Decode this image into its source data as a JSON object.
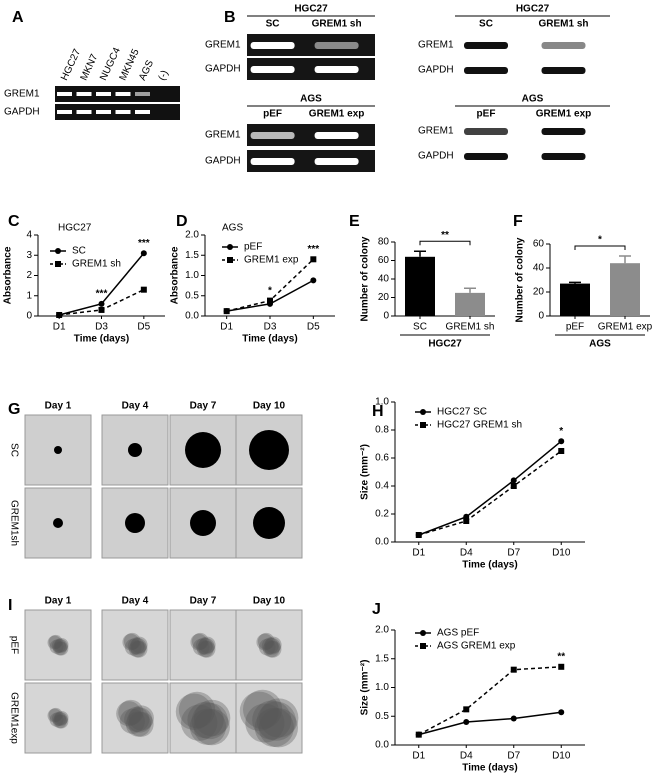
{
  "panels": [
    "A",
    "B",
    "C",
    "D",
    "E",
    "F",
    "G",
    "H",
    "I",
    "J"
  ],
  "gels": {
    "A": {
      "lanes": [
        "HGC27",
        "MKN7",
        "NUGC4",
        "MKN45",
        "AGS",
        "(-)"
      ],
      "rows": [
        "GREM1",
        "GAPDH"
      ]
    },
    "B": [
      {
        "header": "HGC27",
        "columns": [
          "SC",
          "GREM1 sh"
        ],
        "rows": [
          "GREM1",
          "GAPDH"
        ]
      },
      {
        "header": "HGC27",
        "columns": [
          "SC",
          "GREM1 sh"
        ],
        "rows": [
          "GREM1",
          "GAPDH"
        ]
      },
      {
        "header": "AGS",
        "columns": [
          "pEF",
          "GREM1 exp"
        ],
        "rows": [
          "GREM1",
          "GAPDH"
        ]
      },
      {
        "header": "AGS",
        "columns": [
          "pEF",
          "GREM1 exp"
        ],
        "rows": [
          "GREM1",
          "GAPDH"
        ]
      }
    ]
  },
  "spheroids": [
    {
      "days": [
        "Day 1",
        "Day 4",
        "Day  7",
        "Day 10"
      ],
      "rows": [
        "SC",
        "GREM1sh"
      ]
    },
    {
      "days": [
        "Day 1",
        "Day 4",
        "Day  7",
        "Day 10"
      ],
      "rows": [
        "pEF",
        "GREM1exp"
      ]
    }
  ],
  "chart_data": [
    {
      "type": "line",
      "title": "HGC27",
      "categories": [
        "D1",
        "D3",
        "D5"
      ],
      "series": [
        {
          "name": "SC",
          "color": "#000000",
          "marker": "circle",
          "dash": false,
          "values": [
            0.05,
            0.6,
            3.1
          ]
        },
        {
          "name": "GREM1 sh",
          "color": "#000000",
          "marker": "square",
          "dash": true,
          "values": [
            0.05,
            0.3,
            1.3
          ]
        }
      ],
      "ylim": [
        0,
        4
      ],
      "yticks": [
        0,
        1,
        2,
        3,
        4
      ],
      "y_label": "Absorbance",
      "x_label": "Time (days)",
      "annotations": [
        {
          "text": "***",
          "category": "D3"
        },
        {
          "text": "***",
          "category": "D5"
        }
      ]
    },
    {
      "type": "line",
      "title": "AGS",
      "categories": [
        "D1",
        "D3",
        "D5"
      ],
      "series": [
        {
          "name": "pEF",
          "color": "#000000",
          "marker": "circle",
          "dash": false,
          "values": [
            0.12,
            0.3,
            0.88
          ]
        },
        {
          "name": "GREM1 exp",
          "color": "#000000",
          "marker": "square",
          "dash": true,
          "values": [
            0.12,
            0.38,
            1.4
          ]
        }
      ],
      "ylim": [
        0,
        2
      ],
      "yticks": [
        {
          "value": 0,
          "label": "0.0"
        },
        {
          "value": 0.5,
          "label": "0.5"
        },
        {
          "value": 1,
          "label": "1.0"
        },
        {
          "value": 1.5,
          "label": "1.5"
        },
        {
          "value": 2,
          "label": "2.0"
        }
      ],
      "y_label": "Absorbance",
      "x_label": "Time (days)",
      "annotations": [
        {
          "text": "*",
          "category": "D3"
        },
        {
          "text": "***",
          "category": "D5"
        }
      ]
    },
    {
      "type": "bar",
      "categories": [
        "SC",
        "GREM1 sh"
      ],
      "values": [
        64,
        25
      ],
      "errors": [
        6,
        5
      ],
      "colors": [
        "#000000",
        "#8c8c8c"
      ],
      "ylim": [
        0,
        80
      ],
      "yticks": [
        0,
        20,
        40,
        60,
        80
      ],
      "y_label": "Number of colony",
      "group": "HGC27",
      "significance": "**"
    },
    {
      "type": "bar",
      "categories": [
        "pEF",
        "GREM1 exp"
      ],
      "values": [
        27,
        44
      ],
      "errors": [
        1,
        6
      ],
      "colors": [
        "#000000",
        "#8c8c8c"
      ],
      "ylim": [
        0,
        60
      ],
      "yticks": [
        0,
        20,
        40,
        60
      ],
      "y_label": "Number of colony",
      "group": "AGS",
      "significance": "*"
    },
    {
      "type": "line",
      "categories": [
        "D1",
        "D4",
        "D7",
        "D10"
      ],
      "series": [
        {
          "name": "HGC27 SC",
          "color": "#000000",
          "marker": "circle",
          "dash": false,
          "values": [
            0.05,
            0.18,
            0.44,
            0.72
          ]
        },
        {
          "name": "HGC27 GREM1 sh",
          "color": "#000000",
          "marker": "square",
          "dash": true,
          "values": [
            0.05,
            0.15,
            0.4,
            0.65
          ]
        }
      ],
      "ylim": [
        0,
        1
      ],
      "yticks": [
        {
          "value": 0,
          "label": "0.0"
        },
        {
          "value": 0.2,
          "label": "0.2"
        },
        {
          "value": 0.4,
          "label": "0.4"
        },
        {
          "value": 0.6,
          "label": "0.6"
        },
        {
          "value": 0.8,
          "label": "0.8"
        },
        {
          "value": 1,
          "label": "1.0"
        }
      ],
      "y_label": "Size (mm⁻²)",
      "x_label": "Time (days)",
      "annotations": [
        {
          "text": "*",
          "category": "D10"
        }
      ]
    },
    {
      "type": "line",
      "categories": [
        "D1",
        "D4",
        "D7",
        "D10"
      ],
      "series": [
        {
          "name": "AGS pEF",
          "color": "#000000",
          "marker": "circle",
          "dash": false,
          "values": [
            0.18,
            0.4,
            0.46,
            0.57
          ]
        },
        {
          "name": "AGS GREM1 exp",
          "color": "#000000",
          "marker": "square",
          "dash": true,
          "values": [
            0.18,
            0.62,
            1.31,
            1.36
          ]
        }
      ],
      "ylim": [
        0,
        2
      ],
      "yticks": [
        {
          "value": 0,
          "label": "0.0"
        },
        {
          "value": 0.5,
          "label": "0.5"
        },
        {
          "value": 1,
          "label": "1.0"
        },
        {
          "value": 1.5,
          "label": "1.5"
        },
        {
          "value": 2,
          "label": "2.0"
        }
      ],
      "y_label": "Size (mm⁻²)",
      "x_label": "Time (days)",
      "annotations": [
        {
          "text": "**",
          "category": "D10"
        }
      ]
    }
  ]
}
